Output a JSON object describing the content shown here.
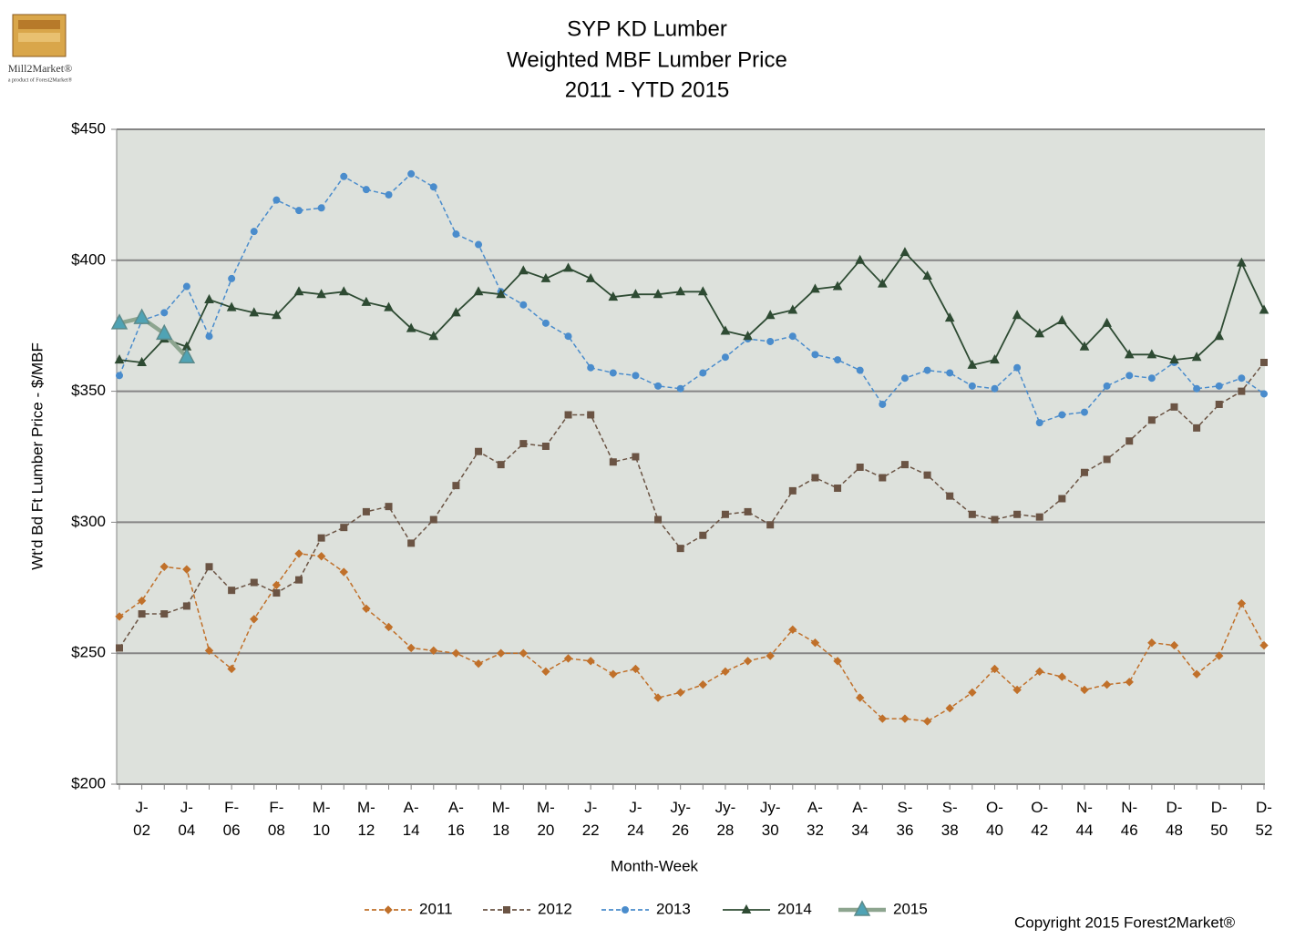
{
  "chart_data": {
    "type": "line",
    "title": [
      "SYP KD Lumber",
      "Weighted MBF Lumber Price",
      "2011 - YTD 2015"
    ],
    "logo": {
      "name": "Mill2Market®",
      "tagline": "a product of Forest2Market®"
    },
    "x_label": "Month-Week",
    "y_label": "Wt'd Bd Ft Lumber  Price - $/MBF",
    "copyright": "Copyright 2015 Forest2Market®",
    "categories": [
      null,
      "J-\n02",
      null,
      "J-\n04",
      null,
      "F-\n06",
      null,
      "F-\n08",
      null,
      "M-\n10",
      null,
      "M-\n12",
      null,
      "A-\n14",
      null,
      "A-\n16",
      null,
      "M-\n18",
      null,
      "M-\n20",
      null,
      "J-\n22",
      null,
      "J-\n24",
      null,
      "Jy-\n26",
      null,
      "Jy-\n28",
      null,
      "Jy-\n30",
      null,
      "A-\n32",
      null,
      "A-\n34",
      null,
      "S-\n36",
      null,
      "S-\n38",
      null,
      "O-\n40",
      null,
      "O-\n42",
      null,
      "N-\n44",
      null,
      "N-\n46",
      null,
      "D-\n48",
      null,
      "D-\n50",
      null,
      "D-\n52"
    ],
    "ylim": [
      200,
      450
    ],
    "yticks": [
      {
        "value": 200,
        "label": "$200"
      },
      {
        "value": 250,
        "label": "$250"
      },
      {
        "value": 300,
        "label": "$300"
      },
      {
        "value": 350,
        "label": "$350"
      },
      {
        "value": 400,
        "label": "$400"
      },
      {
        "value": 450,
        "label": "$450"
      }
    ],
    "grid": true,
    "series": [
      {
        "name": "2011",
        "color": "#c0702a",
        "dash": true,
        "marker": "diamond",
        "values": [
          264,
          270,
          283,
          282,
          251,
          244,
          263,
          276,
          288,
          287,
          281,
          267,
          260,
          252,
          251,
          250,
          246,
          250,
          250,
          243,
          248,
          247,
          242,
          244,
          233,
          235,
          238,
          243,
          247,
          249,
          259,
          254,
          247,
          233,
          225,
          225,
          224,
          229,
          235,
          244,
          236,
          243,
          241,
          236,
          238,
          239,
          254,
          253,
          242,
          249,
          269,
          253
        ]
      },
      {
        "name": "2012",
        "color": "#6b5444",
        "dash": true,
        "marker": "square",
        "values": [
          252,
          265,
          265,
          268,
          283,
          274,
          277,
          273,
          278,
          294,
          298,
          304,
          306,
          292,
          301,
          314,
          327,
          322,
          330,
          329,
          341,
          341,
          323,
          325,
          301,
          290,
          295,
          303,
          304,
          299,
          312,
          317,
          313,
          321,
          317,
          322,
          318,
          310,
          303,
          301,
          303,
          302,
          309,
          319,
          324,
          331,
          339,
          344,
          336,
          345,
          350,
          361
        ]
      },
      {
        "name": "2013",
        "color": "#4a8ccc",
        "dash": true,
        "marker": "circle",
        "values": [
          356,
          377,
          380,
          390,
          371,
          393,
          411,
          423,
          419,
          420,
          432,
          427,
          425,
          433,
          428,
          410,
          406,
          388,
          383,
          376,
          371,
          359,
          357,
          356,
          352,
          351,
          357,
          363,
          370,
          369,
          371,
          364,
          362,
          358,
          345,
          355,
          358,
          357,
          352,
          351,
          359,
          338,
          341,
          342,
          352,
          356,
          355,
          361,
          351,
          352,
          355,
          349
        ]
      },
      {
        "name": "2014",
        "color": "#2e4b33",
        "dash": false,
        "marker": "triangle",
        "values": [
          362,
          361,
          370,
          367,
          385,
          382,
          380,
          379,
          388,
          387,
          388,
          384,
          382,
          374,
          371,
          380,
          388,
          387,
          396,
          393,
          397,
          393,
          386,
          387,
          387,
          388,
          388,
          373,
          371,
          379,
          381,
          389,
          390,
          400,
          391,
          403,
          394,
          378,
          360,
          362,
          379,
          372,
          377,
          367,
          376,
          364,
          364,
          362,
          363,
          371,
          399,
          381
        ]
      },
      {
        "name": "2015",
        "color": "#8da58f",
        "marker_color": "#4fa3b5",
        "dash": false,
        "marker": "big-triangle",
        "values": [
          376,
          378,
          372,
          363,
          null,
          null,
          null,
          null,
          null,
          null,
          null,
          null,
          null,
          null,
          null,
          null,
          null,
          null,
          null,
          null,
          null,
          null,
          null,
          null,
          null,
          null,
          null,
          null,
          null,
          null,
          null,
          null,
          null,
          null,
          null,
          null,
          null,
          null,
          null,
          null,
          null,
          null,
          null,
          null,
          null,
          null,
          null,
          null,
          null,
          null,
          null,
          null
        ]
      }
    ]
  }
}
